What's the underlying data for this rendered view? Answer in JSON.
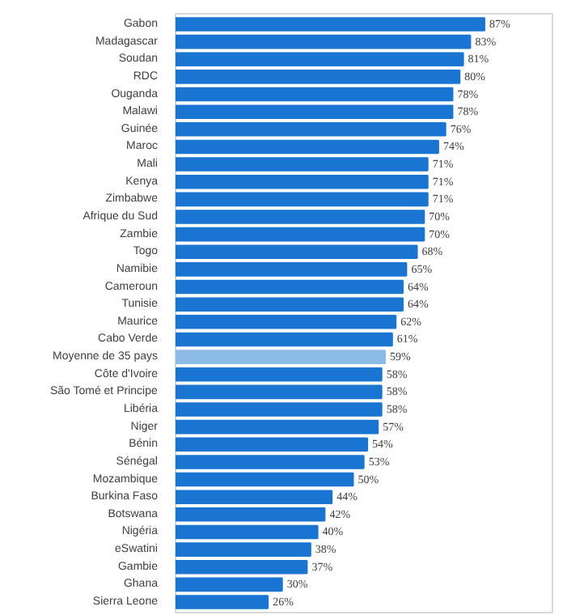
{
  "chart_data": {
    "type": "bar",
    "orientation": "horizontal",
    "categories": [
      "Gabon",
      "Madagascar",
      "Soudan",
      "RDC",
      "Ouganda",
      "Malawi",
      "Guinée",
      "Maroc",
      "Mali",
      "Kenya",
      "Zimbabwe",
      "Afrique du Sud",
      "Zambie",
      "Togo",
      "Namibie",
      "Cameroun",
      "Tunisie",
      "Maurice",
      "Cabo Verde",
      "Moyenne de 35 pays",
      "Côte d'Ivoire",
      "São Tomé et Principe",
      "Libéria",
      "Niger",
      "Bénin",
      "Sénégal",
      "Mozambique",
      "Burkina Faso",
      "Botswana",
      "Nigéria",
      "eSwatini",
      "Gambie",
      "Ghana",
      "Sierra Leone"
    ],
    "values": [
      87,
      83,
      81,
      80,
      78,
      78,
      76,
      74,
      71,
      71,
      71,
      70,
      70,
      68,
      65,
      64,
      64,
      62,
      61,
      59,
      58,
      58,
      58,
      57,
      54,
      53,
      50,
      44,
      42,
      40,
      38,
      37,
      30,
      26
    ],
    "value_labels": [
      "87%",
      "83%",
      "81%",
      "80%",
      "78%",
      "78%",
      "76%",
      "74%",
      "71%",
      "71%",
      "71%",
      "70%",
      "70%",
      "68%",
      "65%",
      "64%",
      "64%",
      "62%",
      "61%",
      "59%",
      "58%",
      "58%",
      "58%",
      "57%",
      "54%",
      "53%",
      "50%",
      "44%",
      "42%",
      "40%",
      "38%",
      "37%",
      "30%",
      "26%"
    ],
    "colors": [
      "#1a75d2",
      "#1a75d2",
      "#1a75d2",
      "#1a75d2",
      "#1a75d2",
      "#1a75d2",
      "#1a75d2",
      "#1a75d2",
      "#1a75d2",
      "#1a75d2",
      "#1a75d2",
      "#1a75d2",
      "#1a75d2",
      "#1a75d2",
      "#1a75d2",
      "#1a75d2",
      "#1a75d2",
      "#1a75d2",
      "#1a75d2",
      "#8dbbe8",
      "#1a75d2",
      "#1a75d2",
      "#1a75d2",
      "#1a75d2",
      "#1a75d2",
      "#1a75d2",
      "#1a75d2",
      "#1a75d2",
      "#1a75d2",
      "#1a75d2",
      "#1a75d2",
      "#1a75d2",
      "#1a75d2",
      "#1a75d2"
    ]
  }
}
